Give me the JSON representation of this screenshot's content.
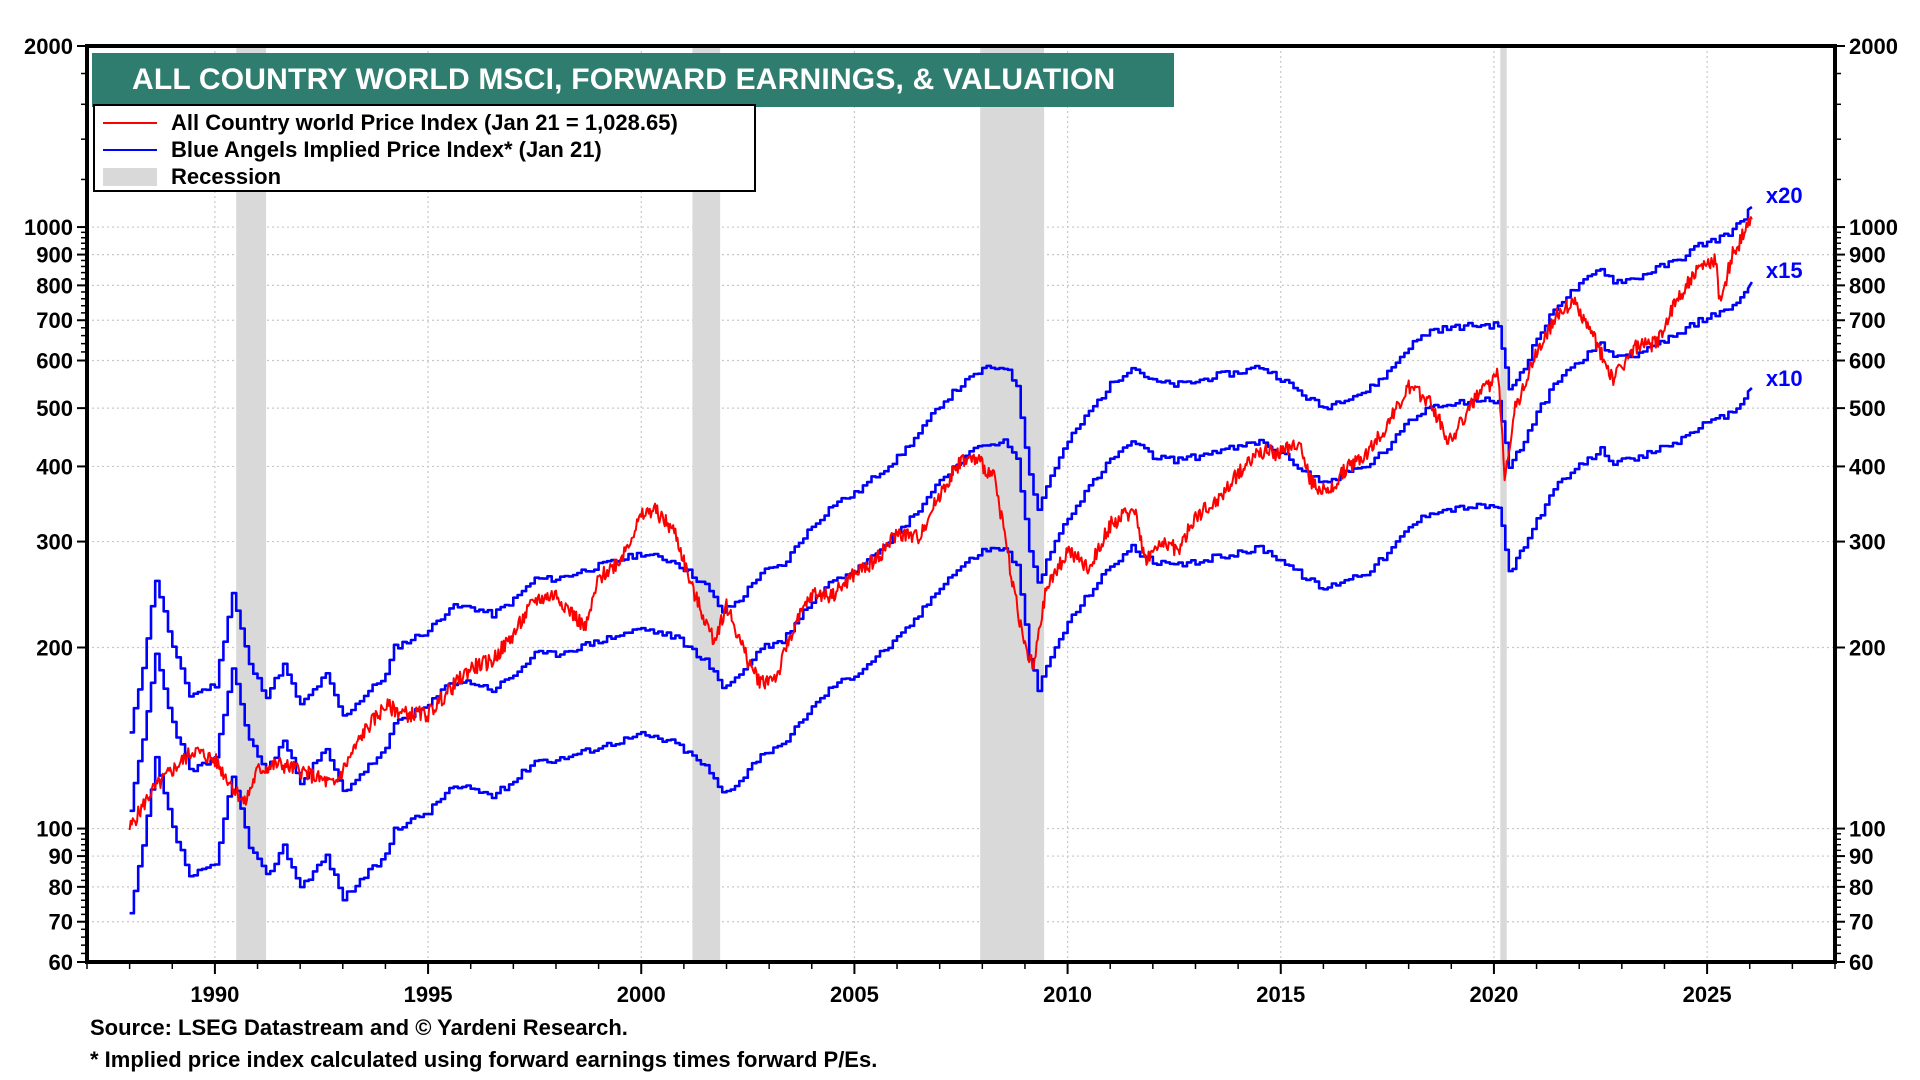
{
  "chart_data": {
    "type": "line",
    "title": "ALL COUNTRY WORLD MSCI, FORWARD EARNINGS, & VALUATION",
    "xlabel": "",
    "ylabel": "",
    "y_scale": "log",
    "ylim": [
      60,
      2000
    ],
    "xlim": [
      1987,
      2028
    ],
    "grid": true,
    "legend_position": "top-left",
    "y_ticks": [
      60,
      70,
      80,
      90,
      100,
      200,
      300,
      400,
      500,
      600,
      700,
      800,
      900,
      1000,
      2000
    ],
    "y_tick_labels": [
      "60",
      "70",
      "80",
      "90",
      "100",
      "200",
      "300",
      "400",
      "500",
      "600",
      "700",
      "800",
      "900",
      "1000",
      "2000"
    ],
    "x_ticks": [
      1990,
      1995,
      2000,
      2005,
      2010,
      2015,
      2020,
      2025
    ],
    "x_tick_labels": [
      "1990",
      "1995",
      "2000",
      "2005",
      "2010",
      "2015",
      "2020",
      "2025"
    ],
    "legend": [
      {
        "label": "All Country world Price Index (Jan 21 = 1,028.65)",
        "color": "#ff0000",
        "kind": "line"
      },
      {
        "label": "Blue Angels Implied Price Index* (Jan 21)",
        "color": "#0000ff",
        "kind": "line"
      },
      {
        "label": "Recession",
        "color": "#d9d9d9",
        "kind": "band"
      }
    ],
    "recessions": [
      {
        "start": 1990.5,
        "end": 1991.2
      },
      {
        "start": 2001.2,
        "end": 2001.85
      },
      {
        "start": 2007.95,
        "end": 2009.45
      },
      {
        "start": 2020.15,
        "end": 2020.3
      }
    ],
    "series": [
      {
        "name": "All Country world Price Index",
        "color": "#ff0000",
        "x": [
          1988.0,
          1988.5,
          1989.0,
          1989.5,
          1990.0,
          1990.7,
          1991.0,
          1991.5,
          1992.0,
          1992.8,
          1993.0,
          1993.5,
          1994.0,
          1994.5,
          1995.0,
          1995.5,
          1996.0,
          1996.5,
          1997.0,
          1997.5,
          1998.0,
          1998.7,
          1999.0,
          1999.5,
          2000.0,
          2000.3,
          2000.8,
          2001.2,
          2001.7,
          2002.0,
          2002.5,
          2002.8,
          2003.2,
          2003.5,
          2004.0,
          2004.5,
          2005.0,
          2005.5,
          2006.0,
          2006.5,
          2007.0,
          2007.5,
          2007.9,
          2008.3,
          2008.7,
          2009.0,
          2009.2,
          2009.5,
          2010.0,
          2010.5,
          2011.0,
          2011.6,
          2011.8,
          2012.3,
          2012.6,
          2013.0,
          2013.5,
          2014.0,
          2014.5,
          2015.0,
          2015.4,
          2015.7,
          2016.1,
          2016.5,
          2017.0,
          2017.5,
          2018.0,
          2018.5,
          2018.95,
          2019.5,
          2020.1,
          2020.25,
          2020.5,
          2021.0,
          2021.5,
          2021.9,
          2022.5,
          2022.8,
          2023.3,
          2023.8,
          2024.3,
          2024.8,
          2025.2,
          2025.3,
          2025.6,
          2026.05
        ],
        "values": [
          100,
          115,
          125,
          135,
          130,
          110,
          125,
          128,
          125,
          118,
          125,
          145,
          160,
          155,
          155,
          170,
          185,
          190,
          210,
          240,
          245,
          215,
          260,
          280,
          330,
          340,
          310,
          250,
          205,
          235,
          190,
          175,
          180,
          210,
          245,
          245,
          265,
          280,
          310,
          305,
          360,
          410,
          410,
          380,
          260,
          200,
          185,
          250,
          290,
          270,
          320,
          340,
          280,
          300,
          290,
          330,
          350,
          390,
          425,
          420,
          440,
          380,
          360,
          395,
          420,
          470,
          540,
          515,
          440,
          510,
          570,
          390,
          500,
          620,
          720,
          750,
          620,
          560,
          630,
          640,
          760,
          850,
          880,
          750,
          900,
          1030
        ]
      },
      {
        "name": "Blue Angels Implied Price Index x15",
        "label": "x15",
        "multiple": 15,
        "color": "#0000ff",
        "x": [
          1988.0,
          1988.3,
          1988.6,
          1989.0,
          1989.4,
          1990.0,
          1990.4,
          1990.8,
          1991.2,
          1991.6,
          1992.0,
          1992.6,
          1993.0,
          1993.5,
          1994.0,
          1994.2,
          1995.0,
          1995.5,
          1996.0,
          1996.5,
          1997.0,
          1997.5,
          1998.0,
          1998.5,
          1999.0,
          1999.5,
          2000.0,
          2000.8,
          2001.5,
          2001.9,
          2002.3,
          2002.8,
          2003.3,
          2003.8,
          2004.5,
          2005.0,
          2005.5,
          2006.0,
          2006.5,
          2007.0,
          2007.5,
          2008.0,
          2008.5,
          2008.8,
          2009.1,
          2009.3,
          2009.6,
          2010.0,
          2010.5,
          2011.0,
          2011.5,
          2012.0,
          2012.5,
          2013.0,
          2013.5,
          2014.0,
          2014.5,
          2015.0,
          2015.5,
          2016.0,
          2016.5,
          2017.0,
          2017.5,
          2018.0,
          2018.5,
          2019.0,
          2019.5,
          2020.1,
          2020.35,
          2020.7,
          2021.0,
          2021.5,
          2022.0,
          2022.5,
          2022.8,
          2023.3,
          2023.8,
          2024.3,
          2024.8,
          2025.2,
          2025.6,
          2026.05
        ],
        "values": [
          108,
          140,
          195,
          150,
          125,
          130,
          185,
          140,
          125,
          140,
          120,
          135,
          115,
          125,
          135,
          150,
          160,
          175,
          175,
          170,
          180,
          195,
          195,
          200,
          205,
          210,
          215,
          208,
          190,
          172,
          180,
          200,
          205,
          230,
          260,
          270,
          290,
          310,
          340,
          380,
          410,
          435,
          440,
          410,
          290,
          255,
          290,
          330,
          370,
          410,
          440,
          415,
          410,
          415,
          425,
          430,
          440,
          420,
          395,
          375,
          390,
          400,
          430,
          475,
          505,
          510,
          515,
          515,
          400,
          440,
          490,
          560,
          600,
          640,
          610,
          615,
          640,
          660,
          700,
          715,
          740,
          810
        ]
      },
      {
        "name": "Blue Angels Implied Price Index x20",
        "label": "x20",
        "multiple": 20,
        "color": "#0000ff",
        "derived_from": "x15 × 20/15"
      },
      {
        "name": "Blue Angels Implied Price Index x10",
        "label": "x10",
        "multiple": 10,
        "color": "#0000ff",
        "derived_from": "x15 × 10/15"
      }
    ]
  },
  "footer": {
    "source": "Source: LSEG Datastream and © Yardeni Research.",
    "note": "* Implied price index calculated using forward earnings times forward P/Es."
  }
}
